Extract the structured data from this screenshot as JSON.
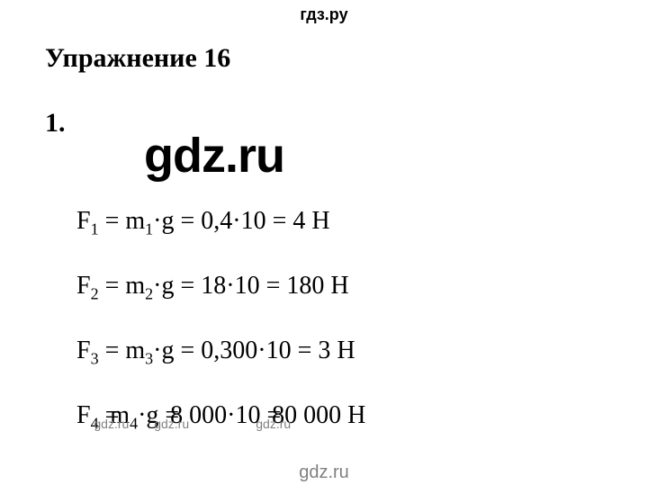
{
  "watermarks": {
    "top": "гдз.ру",
    "big": "gdz.ru",
    "bottom": "gdz.ru",
    "inline": "gdz.ru"
  },
  "title": "Упражнение 16",
  "problem_number": "1.",
  "equations": {
    "eq1": {
      "var": "F",
      "sub1": "1",
      "eq_a": " = m",
      "sub2": "1",
      "rest": "·g = 0,4·10 = 4 Н"
    },
    "eq2": {
      "var": "F",
      "sub1": "2",
      "eq_a": " = m",
      "sub2": "2",
      "rest": "·g = 18·10 = 180 Н"
    },
    "eq3": {
      "var": "F",
      "sub1": "3",
      "eq_a": " = m",
      "sub2": "3",
      "rest": "·g = 0,300·10 = 3 Н"
    },
    "eq4": {
      "var": "F",
      "sub1": "4",
      "part1a": " =",
      "part1b": " m",
      "sub2": "4",
      "part2a": "·g =",
      "part2b": " 8 000·10 =",
      "part2c": " 80 000 Н"
    }
  },
  "style": {
    "background": "#ffffff",
    "text_color": "#000000",
    "watermark_gray": "#808080",
    "title_fontsize": 30,
    "equation_fontsize": 28,
    "big_watermark_fontsize": 54,
    "font_family_main": "Times New Roman",
    "font_family_watermark": "Arial"
  }
}
